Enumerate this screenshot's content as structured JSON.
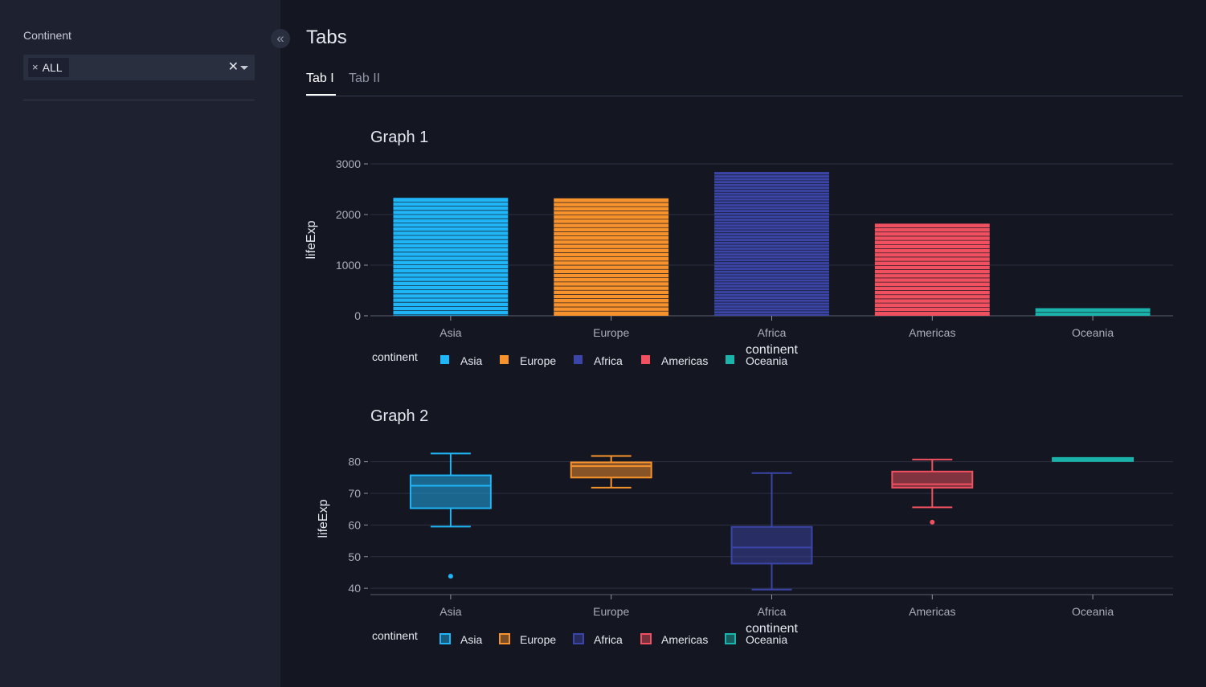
{
  "sidebar": {
    "filter_label": "Continent",
    "selected_chip": "ALL",
    "chip_remove_glyph": "×",
    "clear_glyph": "✕",
    "collapse_glyph": "«"
  },
  "page": {
    "title": "Tabs",
    "tabs": [
      {
        "label": "Tab I",
        "active": true
      },
      {
        "label": "Tab II",
        "active": false
      }
    ]
  },
  "colors": {
    "Asia": "#1fb5f7",
    "Europe": "#f8922d",
    "Africa": "#3b45a8",
    "Americas": "#f0505f",
    "Oceania": "#1ab4ad",
    "background": "#141721",
    "sidebar": "#1d2130",
    "grid": "#2c3142"
  },
  "chart_data": [
    {
      "title": "Graph 1",
      "type": "bar",
      "categories": [
        "Asia",
        "Europe",
        "Africa",
        "Americas",
        "Oceania"
      ],
      "values": [
        2330,
        2320,
        2840,
        1820,
        150
      ],
      "xlabel": "continent",
      "ylabel": "lifeExp",
      "ylim": [
        0,
        3000
      ],
      "yticks": [
        0,
        1000,
        2000,
        3000
      ],
      "stacked_segments": true,
      "legend": {
        "title": "continent",
        "position": "bottom-left",
        "entries": [
          "Asia",
          "Europe",
          "Africa",
          "Americas",
          "Oceania"
        ]
      }
    },
    {
      "title": "Graph 2",
      "type": "box",
      "categories": [
        "Asia",
        "Europe",
        "Africa",
        "Americas",
        "Oceania"
      ],
      "boxes": [
        {
          "name": "Asia",
          "min": 59.5,
          "q1": 65.3,
          "median": 72.4,
          "q3": 75.7,
          "max": 82.6,
          "outliers": [
            43.8
          ]
        },
        {
          "name": "Europe",
          "min": 71.8,
          "q1": 75.0,
          "median": 78.6,
          "q3": 79.8,
          "max": 81.8,
          "outliers": []
        },
        {
          "name": "Africa",
          "min": 39.6,
          "q1": 47.8,
          "median": 52.9,
          "q3": 59.4,
          "max": 76.4,
          "outliers": []
        },
        {
          "name": "Americas",
          "min": 65.6,
          "q1": 71.8,
          "median": 72.9,
          "q3": 76.9,
          "max": 80.7,
          "outliers": [
            60.9
          ]
        },
        {
          "name": "Oceania",
          "min": 80.2,
          "q1": 80.2,
          "median": 80.7,
          "q3": 81.2,
          "max": 81.2,
          "outliers": []
        }
      ],
      "xlabel": "continent",
      "ylabel": "lifeExp",
      "ylim": [
        38,
        86
      ],
      "yticks": [
        40,
        50,
        60,
        70,
        80
      ],
      "legend": {
        "title": "continent",
        "position": "bottom-left",
        "entries": [
          "Asia",
          "Europe",
          "Africa",
          "Americas",
          "Oceania"
        ]
      }
    }
  ]
}
